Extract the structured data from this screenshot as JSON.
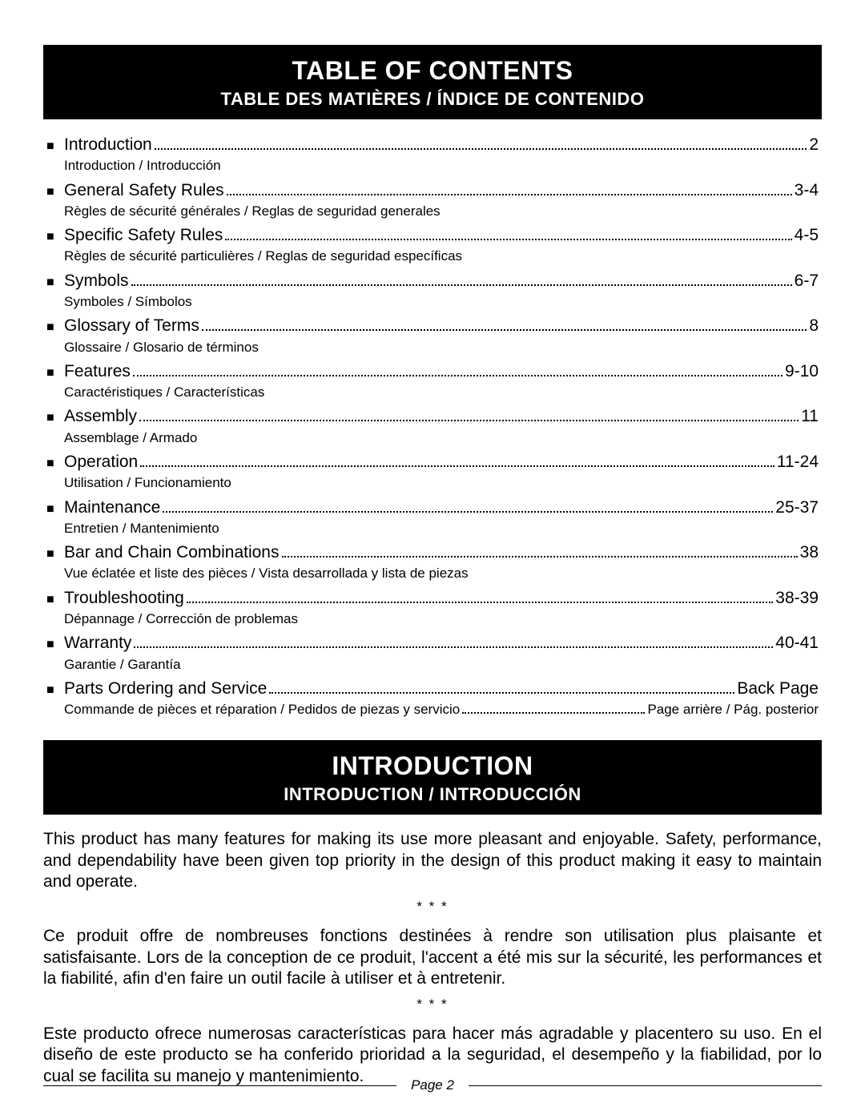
{
  "toc_header": {
    "title": "Table of Contents",
    "subtitle": "Table des Matières / Índice de Contenido"
  },
  "toc": [
    {
      "label": "Introduction",
      "page": "2",
      "sub": "Introduction / Introducción"
    },
    {
      "label": "General Safety Rules",
      "page": "3-4",
      "sub": "Règles de sécurité générales / Reglas de seguridad generales"
    },
    {
      "label": "Specific Safety Rules",
      "page": "4-5",
      "sub": "Règles de sécurité particulières / Reglas de seguridad específicas"
    },
    {
      "label": "Symbols",
      "page": "6-7",
      "sub": "Symboles / Símbolos"
    },
    {
      "label": "Glossary of Terms",
      "page": "8",
      "sub": "Glossaire / Glosario de términos"
    },
    {
      "label": "Features",
      "page": "9-10",
      "sub": "Caractéristiques / Características"
    },
    {
      "label": "Assembly",
      "page": "11",
      "sub": "Assemblage / Armado"
    },
    {
      "label": "Operation",
      "page": "11-24",
      "sub": "Utilisation / Funcionamiento"
    },
    {
      "label": "Maintenance",
      "page": "25-37",
      "sub": "Entretien / Mantenimiento"
    },
    {
      "label": "Bar and Chain Combinations",
      "page": "38",
      "sub": "Vue éclatée et liste des pièces / Vista desarrollada y lista de piezas"
    },
    {
      "label": "Troubleshooting",
      "page": "38-39",
      "sub": "Dépannage / Corrección de problemas"
    },
    {
      "label": "Warranty",
      "page": "40-41",
      "sub": "Garantie / Garantía"
    },
    {
      "label": "Parts Ordering and Service",
      "page": "Back Page",
      "sub": "Commande de pièces et réparation / Pedidos de piezas y servicio",
      "sub_page": "Page arrière / Pág. posterior",
      "sub_dotted": true
    }
  ],
  "intro_header": {
    "title": "Introduction",
    "subtitle": "Introduction / Introducción"
  },
  "intro": {
    "p1": "This product has many features for making its use more pleasant and enjoyable. Safety, performance, and dependability have been given top priority in the design of this product making it easy to maintain and operate.",
    "p2": "Ce produit offre de nombreuses fonctions destinées à rendre son utilisation plus plaisante et satisfaisante. Lors de la conception de ce produit, l'accent a été mis sur la sécurité, les performances et la fiabilité, afin d'en faire un outil facile à utiliser et à entretenir.",
    "p3": "Este producto ofrece numerosas características para hacer más agradable y placentero su uso. En el diseño de este producto se ha conferido prioridad a la seguridad, el desempeño y la fiabilidad, por lo cual se facilita su manejo y mantenimiento.",
    "sep": "* * *"
  },
  "footer": {
    "page_label": "Page 2"
  },
  "style": {
    "bg": "#ffffff",
    "fg": "#000000",
    "header_bg": "#000000",
    "header_fg": "#ffffff",
    "title_fontsize": 32,
    "subtitle_fontsize": 22,
    "body_fontsize": 21,
    "sub_fontsize": 17,
    "bullet": "■"
  }
}
